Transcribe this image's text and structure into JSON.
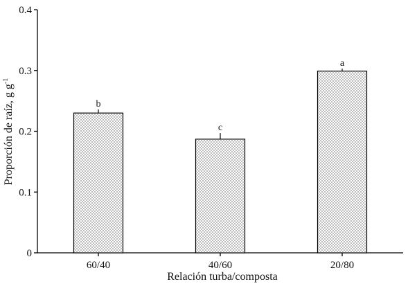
{
  "chart_data": {
    "type": "bar",
    "title": "",
    "xlabel": "Relación turba/composta",
    "ylabel": "Proporción de raíz, g g",
    "ylabel_superscript": "-1",
    "ylim": [
      0,
      0.4
    ],
    "yticks": [
      0,
      0.1,
      0.2,
      0.3,
      0.4
    ],
    "ytick_labels": [
      "0",
      "0.1",
      "0.2",
      "0.3",
      "0.4"
    ],
    "categories": [
      "60/40",
      "40/60",
      "20/80"
    ],
    "values": [
      0.23,
      0.187,
      0.299
    ],
    "errors": [
      0.006,
      0.01,
      0.004
    ],
    "significance_letters": [
      "b",
      "c",
      "a"
    ],
    "bar_fill": "dotted pattern",
    "grid": false,
    "legend": "none"
  }
}
